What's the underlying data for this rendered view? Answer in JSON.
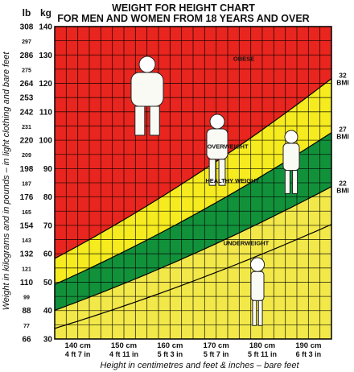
{
  "chart_data": {
    "type": "area",
    "title_line1": "WEIGHT FOR HEIGHT CHART",
    "title_line2": "FOR MEN AND WOMEN FROM 18 YEARS AND OVER",
    "ylabel": "Weight in kilograms and in pounds – in light clothing and bare feet",
    "xlabel": "Height in centimetres and feet & inches – bare feet",
    "y_unit_lb": "lb",
    "y_unit_kg": "kg",
    "x_range_cm": [
      135,
      195
    ],
    "y_range_kg": [
      30,
      140
    ],
    "kg_ticks": [
      {
        "value": 140,
        "label": "140"
      },
      {
        "value": 130,
        "label": "130"
      },
      {
        "value": 120,
        "label": "120"
      },
      {
        "value": 110,
        "label": "110"
      },
      {
        "value": 100,
        "label": "100"
      },
      {
        "value": 90,
        "label": "90"
      },
      {
        "value": 80,
        "label": "80"
      },
      {
        "value": 70,
        "label": "70"
      },
      {
        "value": 60,
        "label": "60"
      },
      {
        "value": 50,
        "label": "50"
      },
      {
        "value": 40,
        "label": "40"
      },
      {
        "value": 30,
        "label": "30"
      }
    ],
    "lb_ticks": [
      {
        "kg": 140,
        "label": "308",
        "major": true
      },
      {
        "kg": 135,
        "label": "297",
        "major": false
      },
      {
        "kg": 130,
        "label": "286",
        "major": true
      },
      {
        "kg": 125,
        "label": "275",
        "major": false
      },
      {
        "kg": 120,
        "label": "264",
        "major": true
      },
      {
        "kg": 115,
        "label": "253",
        "major": true
      },
      {
        "kg": 110,
        "label": "242",
        "major": true
      },
      {
        "kg": 105,
        "label": "231",
        "major": false
      },
      {
        "kg": 100,
        "label": "220",
        "major": true
      },
      {
        "kg": 95,
        "label": "209",
        "major": false
      },
      {
        "kg": 90,
        "label": "198",
        "major": true
      },
      {
        "kg": 85,
        "label": "187",
        "major": false
      },
      {
        "kg": 80,
        "label": "176",
        "major": true
      },
      {
        "kg": 75,
        "label": "165",
        "major": false
      },
      {
        "kg": 70,
        "label": "154",
        "major": true
      },
      {
        "kg": 65,
        "label": "143",
        "major": false
      },
      {
        "kg": 60,
        "label": "132",
        "major": true
      },
      {
        "kg": 55,
        "label": "121",
        "major": false
      },
      {
        "kg": 50,
        "label": "110",
        "major": true
      },
      {
        "kg": 45,
        "label": "99",
        "major": false
      },
      {
        "kg": 40,
        "label": "88",
        "major": true
      },
      {
        "kg": 35,
        "label": "77",
        "major": false
      },
      {
        "kg": 30,
        "label": "66",
        "major": true
      }
    ],
    "x_ticks": [
      {
        "cm": 140,
        "label": "140 cm",
        "imperial": "4 ft 7 in"
      },
      {
        "cm": 150,
        "label": "150 cm",
        "imperial": "4 ft 11 in"
      },
      {
        "cm": 160,
        "label": "160 cm",
        "imperial": "5 ft 3 in"
      },
      {
        "cm": 170,
        "label": "170 cm",
        "imperial": "5 ft 7 in"
      },
      {
        "cm": 180,
        "label": "180 cm",
        "imperial": "5 ft 11 in"
      },
      {
        "cm": 190,
        "label": "190 cm",
        "imperial": "6 ft 3 in"
      }
    ],
    "bmi_lines": [
      {
        "bmi": 32,
        "label_top": "32",
        "label_bottom": "BMI"
      },
      {
        "bmi": 27,
        "label_top": "27",
        "label_bottom": "BMI"
      },
      {
        "bmi": 22,
        "label_top": "22",
        "label_bottom": "BMI"
      },
      {
        "bmi": 18.5,
        "label_top": "",
        "label_bottom": ""
      }
    ],
    "zones": [
      {
        "name": "OBESE",
        "color": "#e8251e"
      },
      {
        "name": "OVERWEIGHT",
        "color": "#f5eb1f"
      },
      {
        "name": "HEALTHY WEIGHT",
        "color": "#12913b"
      },
      {
        "name": "UNDERWEIGHT",
        "color": "#f2e84a"
      }
    ],
    "zone_label_positions": [
      {
        "name": "OBESE",
        "cm": 176,
        "kg": 128
      },
      {
        "name": "OVERWEIGHT",
        "cm": 172.5,
        "kg": 97
      },
      {
        "name": "HEALTHY WEIGHT",
        "cm": 173.5,
        "kg": 85
      },
      {
        "name": "UNDERWEIGHT",
        "cm": 176.5,
        "kg": 63
      }
    ],
    "grid": true,
    "grid_color": "#000000"
  }
}
